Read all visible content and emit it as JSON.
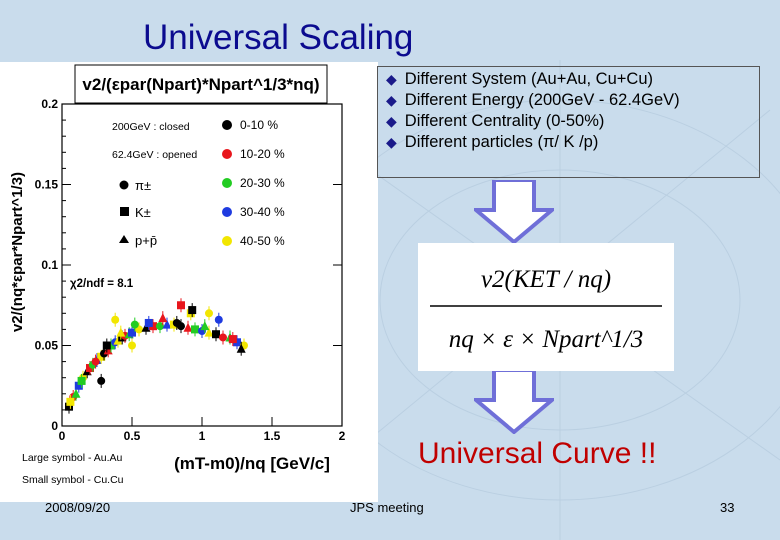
{
  "slide": {
    "title": "Universal Scaling",
    "bullets": [
      "Different System (Au+Au, Cu+Cu)",
      "Different Energy (200GeV - 62.4GeV)",
      "Different Centrality (0-50%)",
      "Different particles (π/ K /p)"
    ],
    "formula": {
      "numerator": "v2(KET / nq)",
      "denominator": "nq × ε × Npart^1/3"
    },
    "conclusion": "Universal Curve !!",
    "footer": {
      "date": "2008/09/20",
      "event": "JPS meeting",
      "page": "33"
    },
    "colors": {
      "title": "#0b0b8f",
      "conclusion": "#c00000",
      "arrow": "#6f6fd8"
    }
  },
  "chart_data": {
    "type": "scatter",
    "in_plot_title": "v2/(εpar(Npart)*Npart^1/3*nq)",
    "xlabel": "(mT-m0)/nq [GeV/c]",
    "ylabel": "v2/(nq*εpar*Npart^1/3)",
    "xlim": [
      0,
      2
    ],
    "ylim": [
      0,
      0.2
    ],
    "x_ticks": [
      "0",
      "0.5",
      "1",
      "1.5",
      "2"
    ],
    "y_ticks": [
      "0",
      "0.05",
      "0.1",
      "0.15",
      "0.2"
    ],
    "annotation": "χ2/ndf = 8.1",
    "energy_legend": [
      "200GeV : closed",
      "62.4GeV : opened"
    ],
    "particle_legend": [
      "π±",
      "K±",
      "p+p̄"
    ],
    "size_legend": [
      "Large symbol - Au.Au",
      "Small symbol - Cu.Cu"
    ],
    "centrality_series": [
      {
        "name": "0-10 %",
        "color": "#000000"
      },
      {
        "name": "10-20 %",
        "color": "#e8161c"
      },
      {
        "name": "20-30 %",
        "color": "#22cc22"
      },
      {
        "name": "30-40 %",
        "color": "#1f3be0"
      },
      {
        "name": "40-50 %",
        "color": "#f2e600"
      }
    ],
    "points": [
      {
        "x": 0.05,
        "y": 0.012,
        "c": 0,
        "m": "sq"
      },
      {
        "x": 0.08,
        "y": 0.018,
        "c": 1,
        "m": "ci"
      },
      {
        "x": 0.1,
        "y": 0.02,
        "c": 2,
        "m": "tr"
      },
      {
        "x": 0.12,
        "y": 0.025,
        "c": 3,
        "m": "sq"
      },
      {
        "x": 0.15,
        "y": 0.03,
        "c": 4,
        "m": "ci"
      },
      {
        "x": 0.18,
        "y": 0.034,
        "c": 0,
        "m": "tr"
      },
      {
        "x": 0.2,
        "y": 0.036,
        "c": 1,
        "m": "sq"
      },
      {
        "x": 0.22,
        "y": 0.038,
        "c": 2,
        "m": "ci"
      },
      {
        "x": 0.25,
        "y": 0.041,
        "c": 3,
        "m": "tr"
      },
      {
        "x": 0.28,
        "y": 0.043,
        "c": 4,
        "m": "sq"
      },
      {
        "x": 0.3,
        "y": 0.045,
        "c": 0,
        "m": "ci"
      },
      {
        "x": 0.33,
        "y": 0.047,
        "c": 1,
        "m": "tr"
      },
      {
        "x": 0.35,
        "y": 0.05,
        "c": 2,
        "m": "sq"
      },
      {
        "x": 0.38,
        "y": 0.052,
        "c": 3,
        "m": "ci"
      },
      {
        "x": 0.4,
        "y": 0.053,
        "c": 4,
        "m": "tr"
      },
      {
        "x": 0.43,
        "y": 0.055,
        "c": 0,
        "m": "sq"
      },
      {
        "x": 0.45,
        "y": 0.056,
        "c": 1,
        "m": "ci"
      },
      {
        "x": 0.48,
        "y": 0.057,
        "c": 2,
        "m": "tr"
      },
      {
        "x": 0.5,
        "y": 0.058,
        "c": 3,
        "m": "sq"
      },
      {
        "x": 0.55,
        "y": 0.06,
        "c": 4,
        "m": "ci"
      },
      {
        "x": 0.6,
        "y": 0.061,
        "c": 0,
        "m": "tr"
      },
      {
        "x": 0.65,
        "y": 0.062,
        "c": 1,
        "m": "sq"
      },
      {
        "x": 0.7,
        "y": 0.062,
        "c": 2,
        "m": "ci"
      },
      {
        "x": 0.75,
        "y": 0.063,
        "c": 3,
        "m": "tr"
      },
      {
        "x": 0.8,
        "y": 0.063,
        "c": 4,
        "m": "sq"
      },
      {
        "x": 0.85,
        "y": 0.062,
        "c": 0,
        "m": "ci"
      },
      {
        "x": 0.9,
        "y": 0.061,
        "c": 1,
        "m": "tr"
      },
      {
        "x": 0.95,
        "y": 0.06,
        "c": 2,
        "m": "sq"
      },
      {
        "x": 1.0,
        "y": 0.059,
        "c": 3,
        "m": "ci"
      },
      {
        "x": 1.05,
        "y": 0.058,
        "c": 4,
        "m": "tr"
      },
      {
        "x": 1.1,
        "y": 0.057,
        "c": 0,
        "m": "sq"
      },
      {
        "x": 1.15,
        "y": 0.055,
        "c": 1,
        "m": "ci"
      },
      {
        "x": 1.2,
        "y": 0.055,
        "c": 2,
        "m": "tr"
      },
      {
        "x": 1.25,
        "y": 0.052,
        "c": 3,
        "m": "sq"
      },
      {
        "x": 1.3,
        "y": 0.05,
        "c": 4,
        "m": "ci"
      },
      {
        "x": 0.06,
        "y": 0.015,
        "c": 4,
        "m": "sq"
      },
      {
        "x": 0.14,
        "y": 0.028,
        "c": 2,
        "m": "sq"
      },
      {
        "x": 0.24,
        "y": 0.04,
        "c": 1,
        "m": "ci"
      },
      {
        "x": 0.32,
        "y": 0.05,
        "c": 0,
        "m": "sq"
      },
      {
        "x": 0.42,
        "y": 0.058,
        "c": 4,
        "m": "tr"
      },
      {
        "x": 0.52,
        "y": 0.063,
        "c": 2,
        "m": "ci"
      },
      {
        "x": 0.62,
        "y": 0.064,
        "c": 3,
        "m": "sq"
      },
      {
        "x": 0.72,
        "y": 0.067,
        "c": 1,
        "m": "tr"
      },
      {
        "x": 0.82,
        "y": 0.064,
        "c": 0,
        "m": "ci"
      },
      {
        "x": 0.92,
        "y": 0.07,
        "c": 4,
        "m": "sq"
      },
      {
        "x": 1.02,
        "y": 0.062,
        "c": 2,
        "m": "tr"
      },
      {
        "x": 1.12,
        "y": 0.066,
        "c": 3,
        "m": "ci"
      },
      {
        "x": 1.22,
        "y": 0.054,
        "c": 1,
        "m": "sq"
      },
      {
        "x": 1.28,
        "y": 0.048,
        "c": 0,
        "m": "tr"
      },
      {
        "x": 0.85,
        "y": 0.075,
        "c": 1,
        "m": "sq"
      },
      {
        "x": 0.93,
        "y": 0.072,
        "c": 0,
        "m": "sq"
      },
      {
        "x": 1.05,
        "y": 0.07,
        "c": 4,
        "m": "ci"
      },
      {
        "x": 0.38,
        "y": 0.066,
        "c": 4,
        "m": "ci"
      },
      {
        "x": 0.28,
        "y": 0.028,
        "c": 0,
        "m": "ci"
      },
      {
        "x": 0.5,
        "y": 0.05,
        "c": 4,
        "m": "ci"
      }
    ]
  }
}
